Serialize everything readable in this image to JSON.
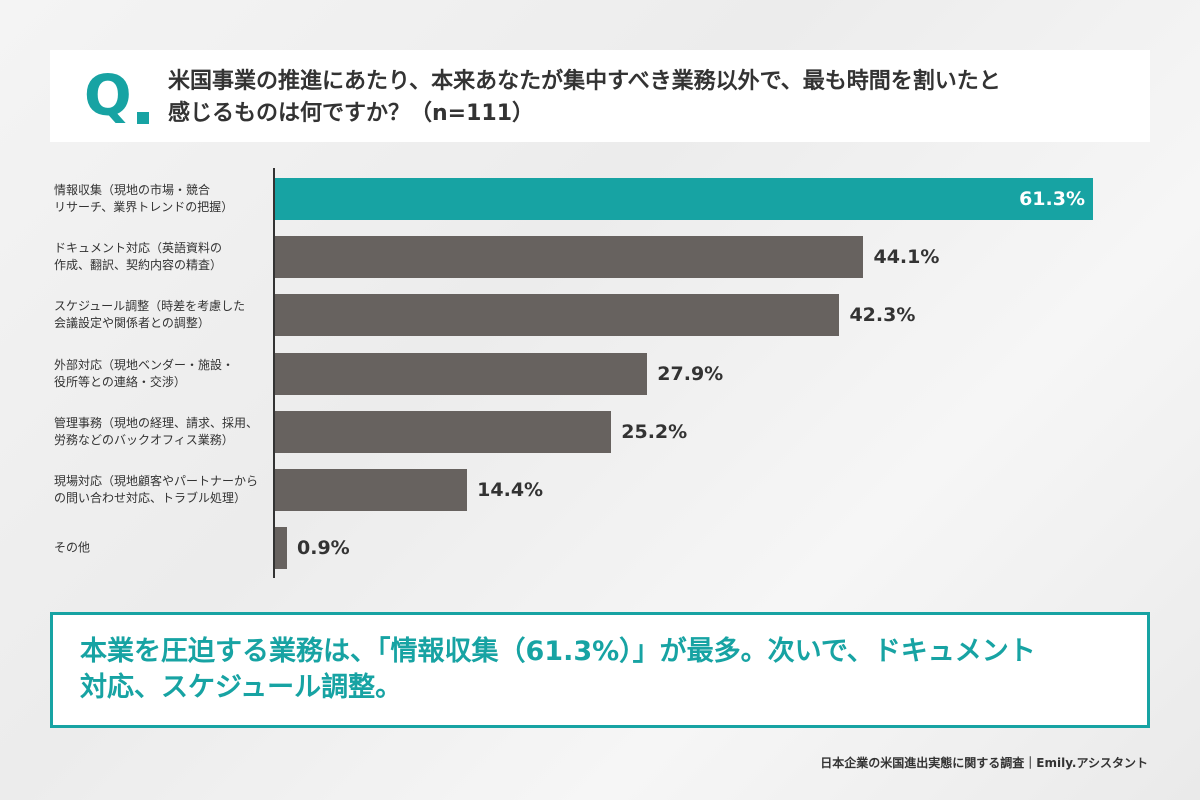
{
  "chart_data": {
    "type": "bar",
    "orientation": "horizontal",
    "title_marker": "Q",
    "title": "米国事業の推進にあたり、本来あなたが集中すべき業務以外で、最も時間を割いたと\n感じるものは何ですか？（n=111）",
    "categories": [
      "情報収集（現地の市場・競合\nリサーチ、業界トレンドの把握）",
      "ドキュメント対応（英語資料の\n作成、翻訳、契約内容の精査）",
      "スケジュール調整（時差を考慮した\n会議設定や関係者との調整）",
      "外部対応（現地ベンダー・施設・\n役所等との連絡・交渉）",
      "管理事務（現地の経理、請求、採用、\n労務などのバックオフィス業務）",
      "現場対応（現地顧客やパートナーから\nの問い合わせ対応、トラブル処理）",
      "その他"
    ],
    "values": [
      61.3,
      44.1,
      42.3,
      27.9,
      25.2,
      14.4,
      0.9
    ],
    "value_labels": [
      "61.3%",
      "44.1%",
      "42.3%",
      "27.9%",
      "25.2%",
      "14.4%",
      "0.9%"
    ],
    "colors": [
      "#17a3a3",
      "#67625f",
      "#67625f",
      "#67625f",
      "#67625f",
      "#67625f",
      "#67625f"
    ],
    "callout": "本業を圧迫する業務は、「情報収集（61.3%）」が最多。次いで、ドキュメント\n対応、スケジュール調整。",
    "source": "日本企業の米国進出実態に関する調査｜Emily.アシスタント"
  }
}
